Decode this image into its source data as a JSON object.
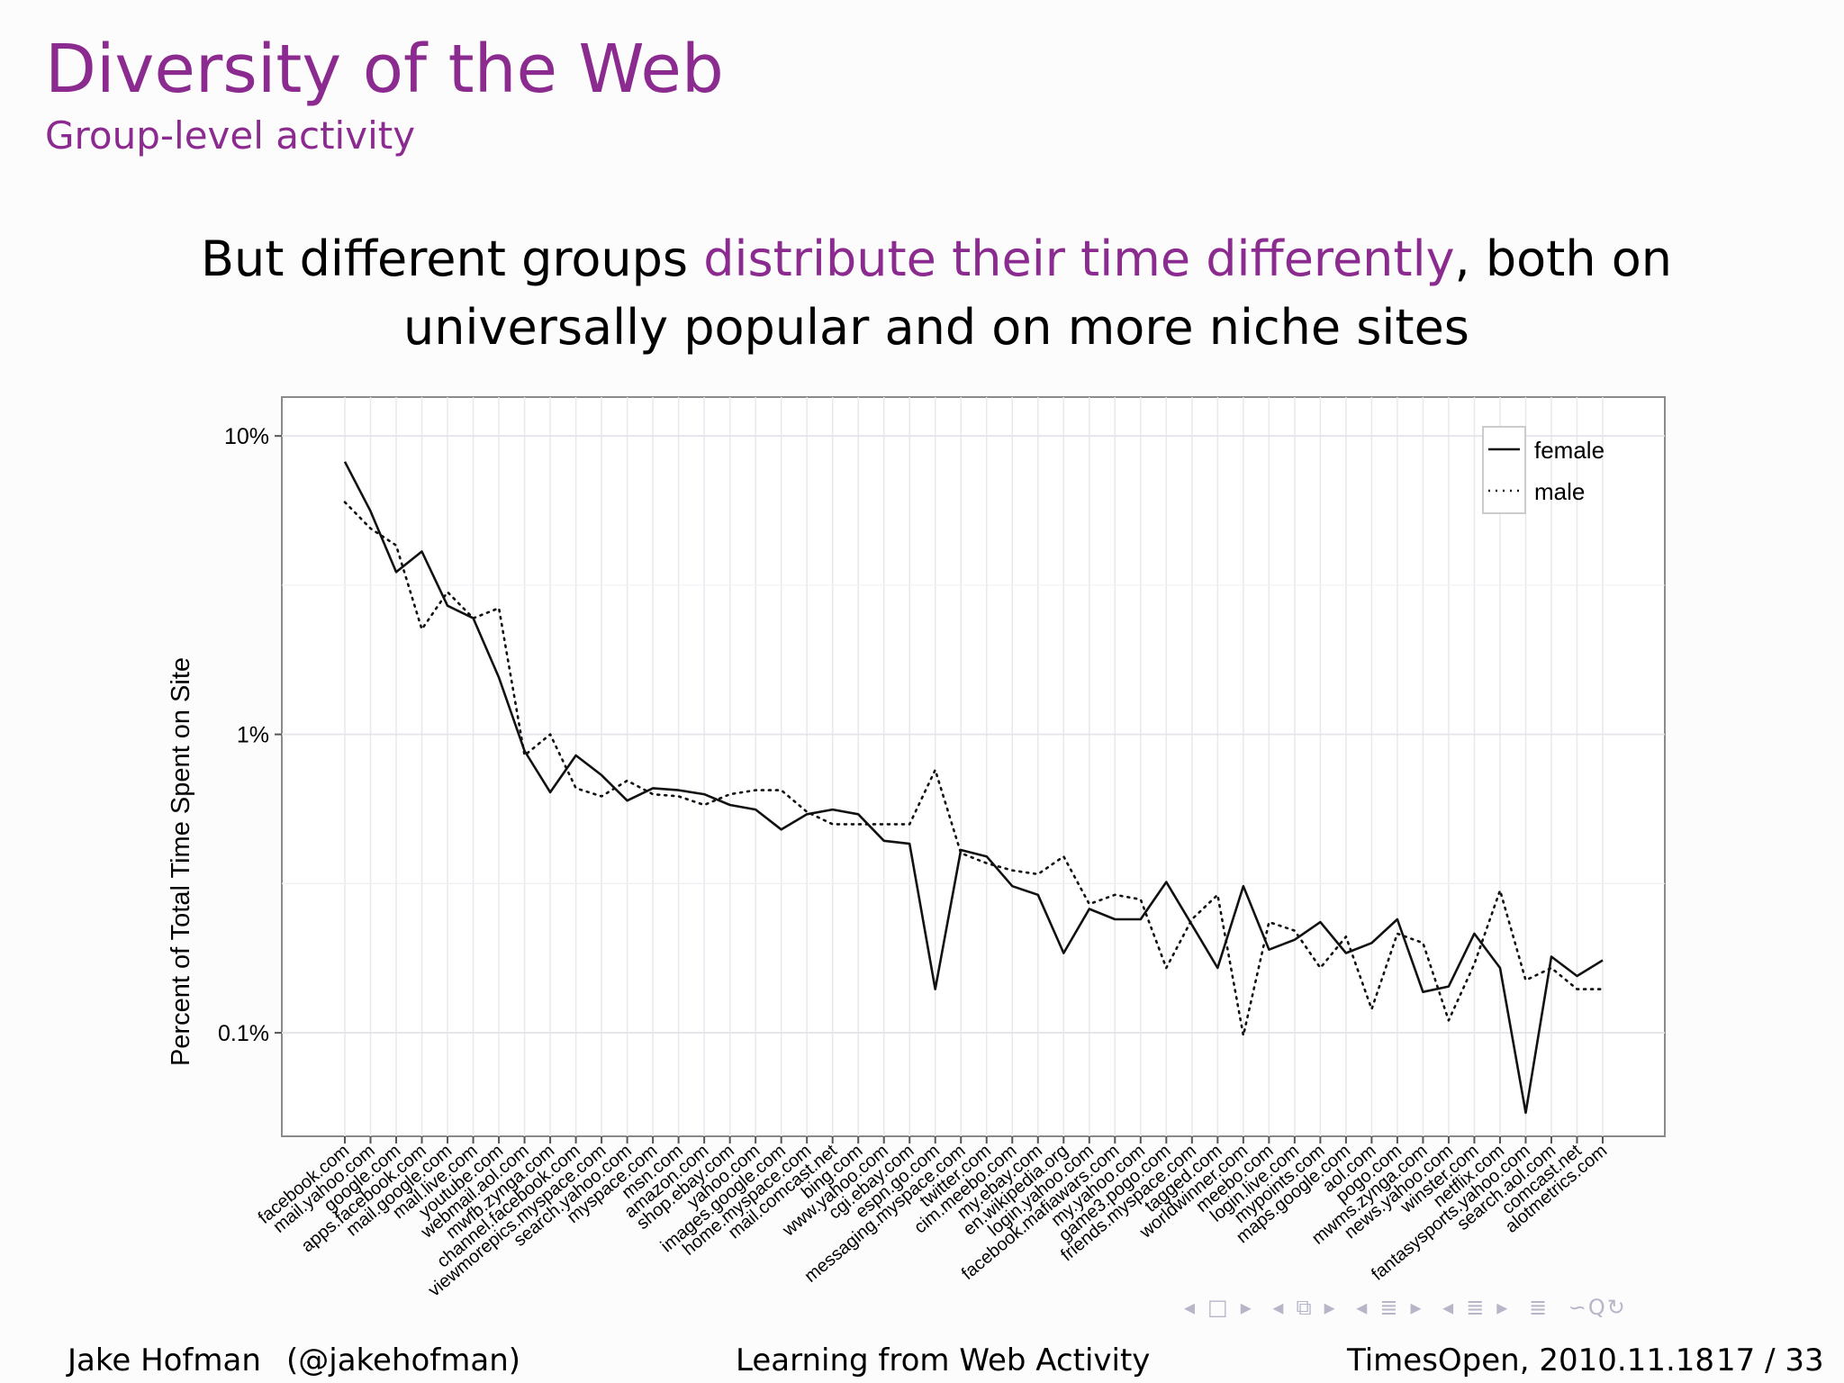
{
  "slide": {
    "title": "Diversity of the Web",
    "subtitle": "Group-level activity",
    "headline_pre": "But different groups ",
    "headline_highlight": "distribute their time differently",
    "headline_post": ", both on universally popular and on more niche sites"
  },
  "footer": {
    "author": "Jake Hofman",
    "handle": "(@jakehofman)",
    "talk": "Learning from Web Activity",
    "event": "TimesOpen, 2010.11.18",
    "page": "17 / 33"
  },
  "nav": {
    "prev_frame": "◂",
    "frame": "□",
    "next_frame": "▸",
    "prev_section": "◂",
    "section": "⧉",
    "next_section": "▸",
    "prev_sub": "◂",
    "subsection": "≣",
    "next_sub": "▸",
    "prev_doc": "◂",
    "doc": "≣",
    "next_doc": "▸",
    "menu": "≣",
    "search": "∽Q↻"
  },
  "colors": {
    "accent": "#8b2b8f",
    "series_line": "#111111",
    "grid": "#e6e6ec"
  },
  "chart_data": {
    "type": "line",
    "ylabel": "Percent of Total Time Spent on Site",
    "xlabel": "",
    "y_scale": "log",
    "ylim": [
      0.045,
      13.5
    ],
    "yticks": [
      0.1,
      1,
      10
    ],
    "ytick_labels": [
      "0.1%",
      "1%",
      "10%"
    ],
    "grid": true,
    "legend_position": "top-right",
    "categories": [
      "facebook.com",
      "mail.yahoo.com",
      "google.com",
      "apps.facebook.com",
      "mail.google.com",
      "mail.live.com",
      "youtube.com",
      "webmail.aol.com",
      "mwfb.zynga.com",
      "channel.facebook.com",
      "viewmorepics.myspace.com",
      "search.yahoo.com",
      "myspace.com",
      "msn.com",
      "amazon.com",
      "shop.ebay.com",
      "yahoo.com",
      "images.google.com",
      "home.myspace.com",
      "mail.comcast.net",
      "bing.com",
      "www.yahoo.com",
      "cgi.ebay.com",
      "espn.go.com",
      "messaging.myspace.com",
      "twitter.com",
      "cim.meebo.com",
      "my.ebay.com",
      "en.wikipedia.org",
      "login.yahoo.com",
      "facebook.mafiawars.com",
      "my.yahoo.com",
      "game3.pogo.com",
      "friends.myspace.com",
      "tagged.com",
      "worldwinner.com",
      "meebo.com",
      "login.live.com",
      "mypoints.com",
      "maps.google.com",
      "aol.com",
      "pogo.com",
      "mwms.zynga.com",
      "news.yahoo.com",
      "winster.com",
      "netflix.com",
      "fantasysports.yahoo.com",
      "search.aol.com",
      "comcast.net",
      "alotmetrics.com"
    ],
    "series": [
      {
        "name": "female",
        "style": "solid",
        "values": [
          8.2,
          5.6,
          3.5,
          4.1,
          2.7,
          2.45,
          1.55,
          0.88,
          0.64,
          0.85,
          0.73,
          0.6,
          0.66,
          0.65,
          0.63,
          0.58,
          0.56,
          0.48,
          0.54,
          0.56,
          0.54,
          0.44,
          0.43,
          0.14,
          0.41,
          0.39,
          0.31,
          0.29,
          0.185,
          0.26,
          0.24,
          0.24,
          0.32,
          0.23,
          0.165,
          0.31,
          0.19,
          0.205,
          0.235,
          0.185,
          0.2,
          0.24,
          0.137,
          0.143,
          0.215,
          0.165,
          0.054,
          0.18,
          0.155,
          0.175
        ]
      },
      {
        "name": "male",
        "style": "dotted",
        "values": [
          6.0,
          4.9,
          4.3,
          2.25,
          3.0,
          2.45,
          2.65,
          0.85,
          1.0,
          0.66,
          0.62,
          0.7,
          0.63,
          0.62,
          0.58,
          0.63,
          0.65,
          0.65,
          0.55,
          0.5,
          0.5,
          0.5,
          0.5,
          0.76,
          0.4,
          0.37,
          0.35,
          0.34,
          0.39,
          0.27,
          0.29,
          0.28,
          0.165,
          0.24,
          0.29,
          0.098,
          0.235,
          0.22,
          0.165,
          0.21,
          0.12,
          0.215,
          0.2,
          0.11,
          0.17,
          0.3,
          0.15,
          0.165,
          0.14,
          0.14
        ]
      }
    ]
  }
}
